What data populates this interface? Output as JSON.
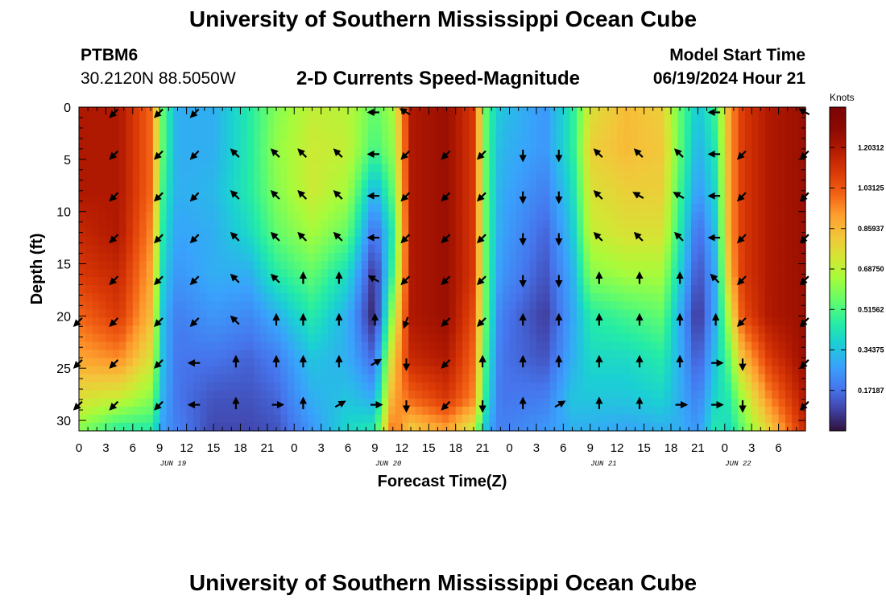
{
  "header": {
    "title": "University of Southern Mississippi Ocean Cube",
    "station": "PTBM6",
    "coords": "30.2120N  88.5050W",
    "chart_label": "2-D Currents Speed-Magnitude",
    "model_start_label": "Model Start Time",
    "model_start_value": "06/19/2024 Hour 21"
  },
  "footer": {
    "title": "University of Southern Mississippi Ocean Cube"
  },
  "chart_data": {
    "type": "heatmap",
    "title": "2-D Currents Speed-Magnitude",
    "xlabel": "Forecast Time(Z)",
    "ylabel": "Depth (ft)",
    "x_range_hours": [
      0,
      81
    ],
    "y_range_ft": [
      0,
      31
    ],
    "x_tick_labels": [
      "0",
      "3",
      "6",
      "9",
      "12",
      "15",
      "18",
      "21",
      "0",
      "3",
      "6",
      "9",
      "12",
      "15",
      "18",
      "21",
      "0",
      "3",
      "6",
      "9",
      "12",
      "15",
      "18",
      "21",
      "0",
      "3",
      "6"
    ],
    "date_labels": [
      {
        "hour": 10.5,
        "label": "JUN 19"
      },
      {
        "hour": 34.5,
        "label": "JUN 20"
      },
      {
        "hour": 58.5,
        "label": "JUN 21"
      },
      {
        "hour": 73.5,
        "label": "JUN 22"
      }
    ],
    "y_ticks": [
      0,
      5,
      10,
      15,
      20,
      25,
      30
    ],
    "colorbar": {
      "unit": "Knots",
      "labels": [
        "1.20312",
        "1.03125",
        "0.85937",
        "0.68750",
        "0.51562",
        "0.34375",
        "0.17187"
      ],
      "min": 0.0,
      "max": 1.375
    },
    "speed_profiles": [
      {
        "t": 0,
        "s": [
          1.2,
          1.2,
          1.2,
          1.15,
          1.1,
          1.0,
          0.9,
          0.75,
          0.6
        ]
      },
      {
        "t": 4.5,
        "s": [
          1.2,
          1.2,
          1.2,
          1.2,
          1.15,
          1.1,
          0.95,
          0.7,
          0.45
        ]
      },
      {
        "t": 8,
        "s": [
          1.0,
          1.0,
          1.0,
          0.95,
          0.9,
          0.85,
          0.75,
          0.6,
          0.45
        ]
      },
      {
        "t": 9.5,
        "s": [
          0.5,
          0.5,
          0.45,
          0.4,
          0.35,
          0.3,
          0.3,
          0.28,
          0.25
        ]
      },
      {
        "t": 11,
        "s": [
          0.3,
          0.3,
          0.3,
          0.28,
          0.25,
          0.2,
          0.18,
          0.18,
          0.2
        ]
      },
      {
        "t": 15,
        "s": [
          0.3,
          0.3,
          0.32,
          0.3,
          0.3,
          0.25,
          0.18,
          0.12,
          0.1
        ]
      },
      {
        "t": 19,
        "s": [
          0.45,
          0.45,
          0.45,
          0.4,
          0.3,
          0.22,
          0.15,
          0.12,
          0.1
        ]
      },
      {
        "t": 22,
        "s": [
          0.6,
          0.62,
          0.6,
          0.55,
          0.45,
          0.3,
          0.2,
          0.15,
          0.12
        ]
      },
      {
        "t": 26,
        "s": [
          0.7,
          0.72,
          0.72,
          0.65,
          0.55,
          0.45,
          0.35,
          0.3,
          0.25
        ]
      },
      {
        "t": 30,
        "s": [
          0.68,
          0.7,
          0.65,
          0.55,
          0.4,
          0.3,
          0.3,
          0.35,
          0.4
        ]
      },
      {
        "t": 33,
        "s": [
          0.55,
          0.5,
          0.3,
          0.15,
          0.05,
          0.02,
          0.15,
          0.3,
          0.45
        ]
      },
      {
        "t": 35,
        "s": [
          0.65,
          0.62,
          0.55,
          0.45,
          0.5,
          0.65,
          0.8,
          0.9,
          1.0
        ]
      },
      {
        "t": 37,
        "s": [
          1.2,
          1.2,
          1.2,
          1.2,
          1.2,
          1.2,
          1.15,
          1.0,
          0.8
        ]
      },
      {
        "t": 41,
        "s": [
          1.25,
          1.25,
          1.25,
          1.25,
          1.25,
          1.25,
          1.2,
          1.1,
          0.9
        ]
      },
      {
        "t": 44,
        "s": [
          1.1,
          1.1,
          1.1,
          1.1,
          1.1,
          1.05,
          1.0,
          0.95,
          0.7
        ]
      },
      {
        "t": 45.5,
        "s": [
          0.5,
          0.5,
          0.5,
          0.5,
          0.5,
          0.5,
          0.45,
          0.4,
          0.3
        ]
      },
      {
        "t": 47,
        "s": [
          0.35,
          0.32,
          0.3,
          0.28,
          0.25,
          0.2,
          0.18,
          0.18,
          0.2
        ]
      },
      {
        "t": 52,
        "s": [
          0.25,
          0.25,
          0.2,
          0.15,
          0.12,
          0.08,
          0.12,
          0.2,
          0.25
        ]
      },
      {
        "t": 55,
        "s": [
          0.45,
          0.45,
          0.4,
          0.35,
          0.3,
          0.28,
          0.3,
          0.35,
          0.3
        ]
      },
      {
        "t": 57,
        "s": [
          0.75,
          0.8,
          0.75,
          0.7,
          0.6,
          0.45,
          0.4,
          0.35,
          0.3
        ]
      },
      {
        "t": 61,
        "s": [
          0.85,
          0.85,
          0.8,
          0.75,
          0.65,
          0.5,
          0.4,
          0.35,
          0.28
        ]
      },
      {
        "t": 65,
        "s": [
          0.8,
          0.82,
          0.8,
          0.75,
          0.65,
          0.55,
          0.45,
          0.38,
          0.3
        ]
      },
      {
        "t": 67,
        "s": [
          0.55,
          0.55,
          0.5,
          0.45,
          0.38,
          0.3,
          0.3,
          0.3,
          0.3
        ]
      },
      {
        "t": 69,
        "s": [
          0.35,
          0.3,
          0.25,
          0.15,
          0.1,
          0.05,
          0.12,
          0.2,
          0.25
        ]
      },
      {
        "t": 71,
        "s": [
          0.5,
          0.45,
          0.4,
          0.35,
          0.3,
          0.3,
          0.35,
          0.4,
          0.45
        ]
      },
      {
        "t": 72.5,
        "s": [
          0.9,
          0.9,
          0.9,
          0.9,
          0.85,
          0.7,
          0.55,
          0.45,
          0.4
        ]
      },
      {
        "t": 74,
        "s": [
          1.1,
          1.1,
          1.1,
          1.1,
          1.1,
          1.05,
          0.85,
          0.65,
          0.55
        ]
      },
      {
        "t": 77,
        "s": [
          1.2,
          1.2,
          1.2,
          1.2,
          1.2,
          1.2,
          1.1,
          0.95,
          0.8
        ]
      },
      {
        "t": 81,
        "s": [
          1.25,
          1.25,
          1.25,
          1.25,
          1.25,
          1.25,
          1.25,
          1.2,
          1.15
        ]
      }
    ],
    "arrow_rows_ft": [
      0.5,
      4.5,
      8.5,
      12.5,
      16.5,
      20.5,
      24.5,
      28.5
    ],
    "arrow_cols_hours": [
      0,
      4,
      9,
      13,
      17.5,
      22,
      25,
      29,
      33,
      36.5,
      41,
      45,
      49.5,
      53.5,
      58,
      62.5,
      67,
      71,
      74,
      81
    ],
    "arrow_directions_deg": [
      [
        null,
        225,
        225,
        225,
        null,
        null,
        null,
        null,
        270,
        300,
        null,
        null,
        null,
        null,
        null,
        null,
        null,
        270,
        null,
        300
      ],
      [
        null,
        225,
        225,
        225,
        315,
        315,
        315,
        315,
        270,
        225,
        225,
        225,
        180,
        180,
        315,
        315,
        315,
        270,
        225,
        225
      ],
      [
        null,
        225,
        225,
        225,
        315,
        315,
        315,
        315,
        270,
        225,
        225,
        225,
        180,
        180,
        315,
        300,
        300,
        270,
        225,
        225
      ],
      [
        null,
        225,
        225,
        225,
        315,
        315,
        315,
        315,
        270,
        225,
        225,
        225,
        180,
        180,
        315,
        315,
        315,
        270,
        225,
        225
      ],
      [
        null,
        225,
        225,
        225,
        315,
        315,
        0,
        0,
        300,
        225,
        225,
        225,
        180,
        180,
        0,
        0,
        0,
        315,
        225,
        225
      ],
      [
        225,
        225,
        225,
        225,
        315,
        0,
        0,
        0,
        0,
        200,
        225,
        225,
        0,
        0,
        0,
        0,
        0,
        0,
        225,
        225
      ],
      [
        225,
        225,
        225,
        270,
        0,
        0,
        0,
        0,
        60,
        180,
        225,
        0,
        0,
        0,
        0,
        0,
        0,
        90,
        180,
        225
      ],
      [
        225,
        225,
        225,
        270,
        0,
        90,
        0,
        60,
        90,
        180,
        225,
        180,
        0,
        60,
        0,
        0,
        90,
        90,
        180,
        225
      ]
    ]
  }
}
